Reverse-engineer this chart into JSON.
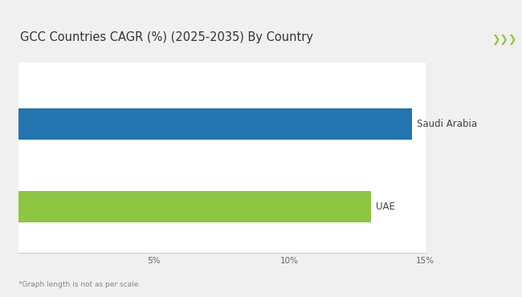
{
  "title": "GCC Countries CAGR (%) (2025-2035) By Country",
  "countries": [
    "Saudi Arabia",
    "UAE"
  ],
  "values": [
    14.5,
    13.0
  ],
  "bar_colors": [
    "#2475B0",
    "#8DC640"
  ],
  "xlim": [
    0,
    15
  ],
  "xticks": [
    5,
    10,
    15
  ],
  "xticklabels": [
    "5%",
    "10%",
    "15%"
  ],
  "footnote": "*Graph length is not as per scale.",
  "bg_color": "#F0F0F0",
  "inner_bg": "#FFFFFF",
  "header_line_color": "#8DC640",
  "chevron_color": "#8DC640",
  "title_fontsize": 10.5,
  "tick_fontsize": 7.5,
  "label_fontsize": 8.5,
  "footnote_fontsize": 6.5
}
